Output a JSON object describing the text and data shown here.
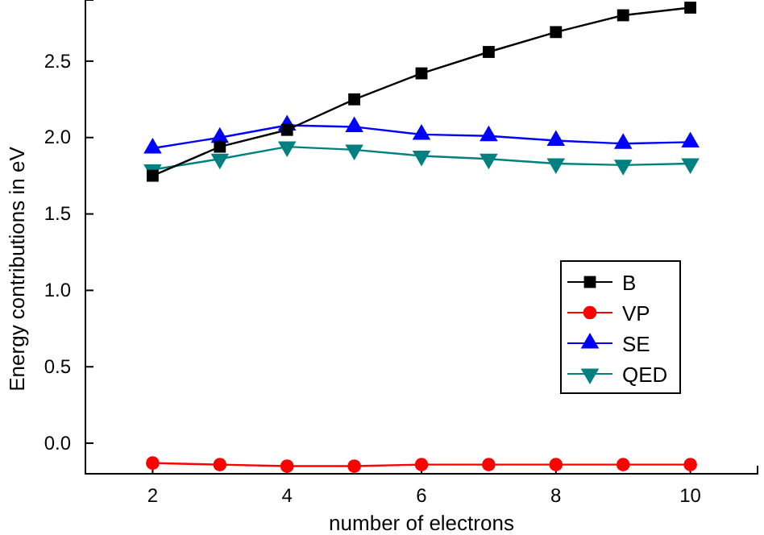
{
  "chart_data": {
    "type": "line",
    "xlabel": "number of electrons",
    "ylabel": "Energy contributions in eV",
    "x": [
      2,
      3,
      4,
      5,
      6,
      7,
      8,
      9,
      10
    ],
    "xlim": [
      1,
      11
    ],
    "xticks": [
      2,
      4,
      6,
      8,
      10
    ],
    "ylim": [
      -0.2,
      2.9
    ],
    "yticks": [
      {
        "value": 0,
        "label": "0.0"
      },
      0.5,
      {
        "value": 1,
        "label": "1.0"
      },
      1.5,
      {
        "value": 2,
        "label": "2.0"
      },
      2.5
    ],
    "grid": false,
    "legend": "right",
    "series": [
      {
        "name": "B",
        "color": "#000000",
        "marker": "square",
        "values": [
          1.75,
          1.94,
          2.05,
          2.25,
          2.42,
          2.56,
          2.69,
          2.8,
          2.85
        ]
      },
      {
        "name": "VP",
        "color": "#ff0000",
        "marker": "circle",
        "values": [
          -0.13,
          -0.14,
          -0.15,
          -0.15,
          -0.14,
          -0.14,
          -0.14,
          -0.14,
          -0.14
        ]
      },
      {
        "name": "SE",
        "color": "#0000ff",
        "marker": "triangle",
        "values": [
          1.93,
          2.0,
          2.08,
          2.07,
          2.02,
          2.01,
          1.98,
          1.96,
          1.97
        ]
      },
      {
        "name": "QED",
        "color": "#008080",
        "marker": "triangle-down",
        "values": [
          1.79,
          1.86,
          1.94,
          1.92,
          1.88,
          1.86,
          1.83,
          1.82,
          1.83
        ]
      }
    ]
  }
}
